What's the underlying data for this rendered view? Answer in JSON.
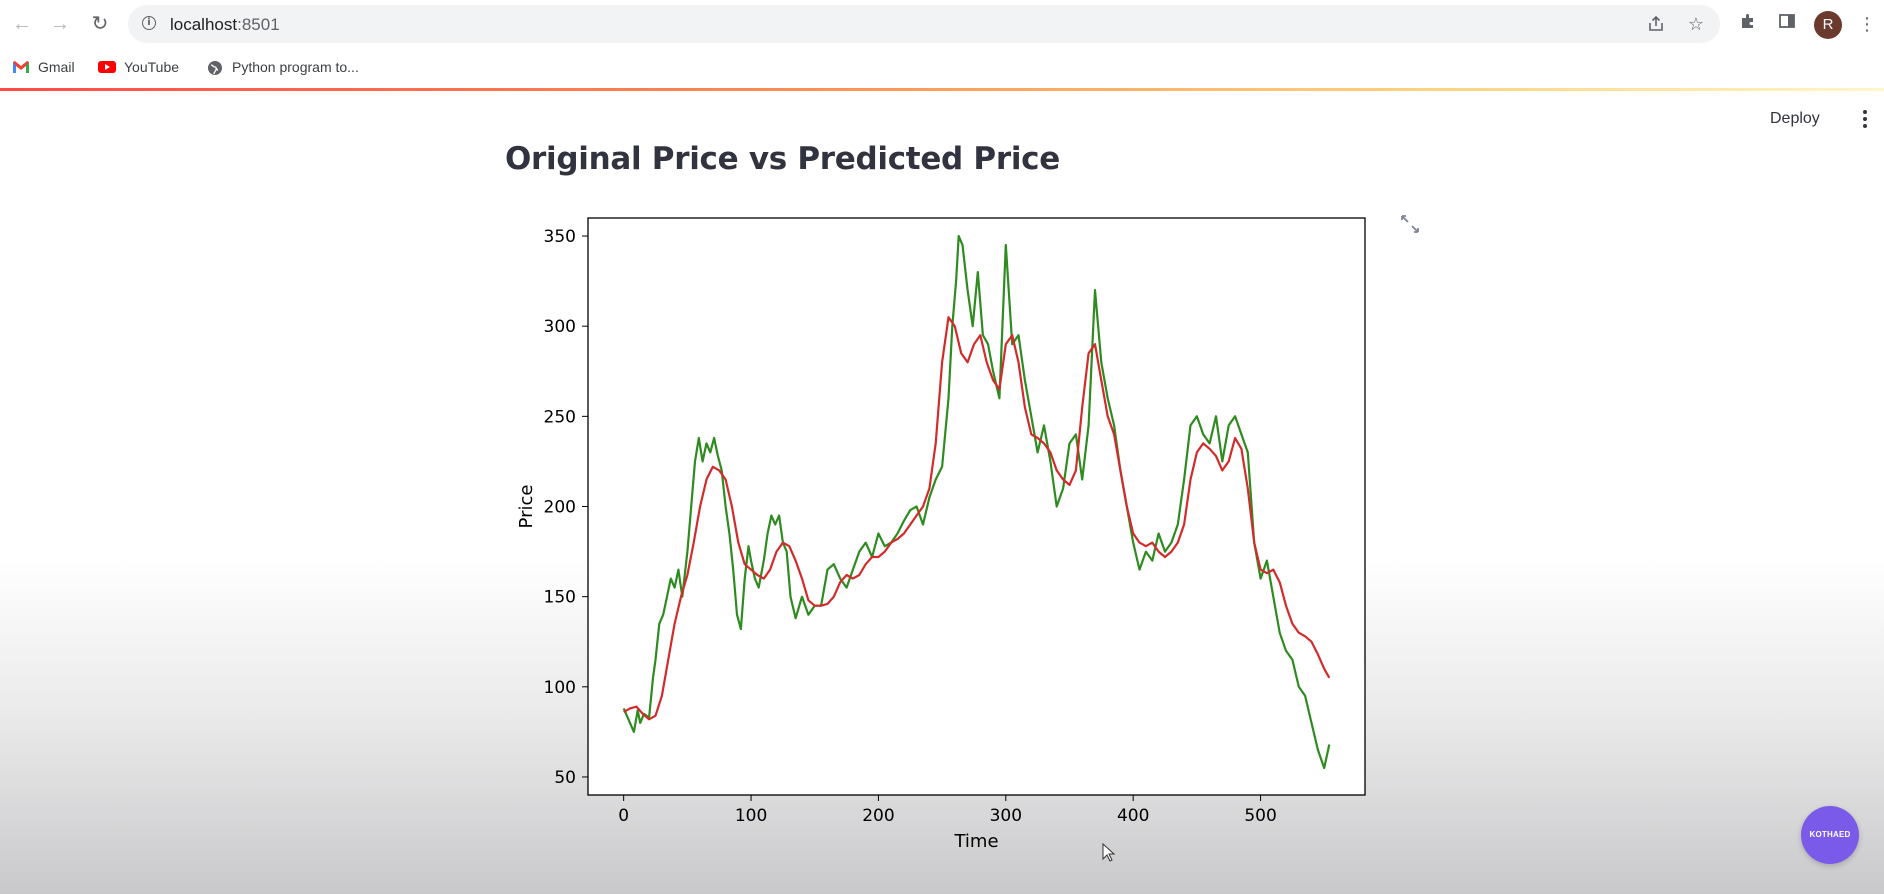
{
  "browser": {
    "url_host": "localhost",
    "url_port": ":8501",
    "profile_initial": "R",
    "bookmarks": [
      {
        "label": "Gmail",
        "icon": "gmail-icon"
      },
      {
        "label": "YouTube",
        "icon": "youtube-icon"
      },
      {
        "label": "Python program to...",
        "icon": "globe-icon"
      }
    ]
  },
  "app": {
    "deploy_label": "Deploy",
    "title": "Original Price vs Predicted Price",
    "badge_text": "KOTHAED"
  },
  "colors": {
    "original": "#2e8b1f",
    "predicted": "#d22b2b",
    "accent": "#ff4b4b",
    "badge": "#7a5ae8"
  },
  "chart_data": {
    "type": "line",
    "title": "",
    "xlabel": "Time",
    "ylabel": "Price",
    "xlim": [
      -28,
      582
    ],
    "ylim": [
      40,
      360
    ],
    "xticks": [
      0,
      100,
      200,
      300,
      400,
      500
    ],
    "yticks": [
      50,
      100,
      150,
      200,
      250,
      300,
      350
    ],
    "grid": false,
    "legend": "none",
    "series": [
      {
        "color": "#2e8b1f",
        "x": [
          0,
          5,
          8,
          11,
          13,
          16,
          20,
          23,
          25,
          28,
          31,
          34,
          37,
          40,
          43,
          46,
          50,
          53,
          56,
          59,
          62,
          65,
          68,
          71,
          74,
          77,
          80,
          83,
          86,
          89,
          92,
          95,
          98,
          100,
          103,
          106,
          110,
          113,
          116,
          119,
          122,
          125,
          128,
          131,
          135,
          140,
          145,
          150,
          155,
          160,
          165,
          170,
          175,
          180,
          185,
          190,
          195,
          200,
          205,
          210,
          215,
          220,
          225,
          230,
          235,
          240,
          245,
          250,
          255,
          258,
          261,
          263,
          266,
          270,
          274,
          278,
          282,
          286,
          290,
          295,
          300,
          305,
          310,
          315,
          320,
          325,
          330,
          335,
          340,
          345,
          350,
          355,
          360,
          365,
          370,
          375,
          380,
          385,
          390,
          395,
          400,
          405,
          410,
          415,
          420,
          425,
          430,
          435,
          440,
          445,
          450,
          455,
          460,
          465,
          470,
          475,
          480,
          485,
          490,
          495,
          500,
          505,
          510,
          515,
          520,
          525,
          530,
          535,
          540,
          545,
          550,
          554
        ],
        "y": [
          88,
          80,
          75,
          87,
          80,
          85,
          83,
          105,
          115,
          135,
          140,
          150,
          160,
          155,
          165,
          150,
          175,
          200,
          225,
          238,
          225,
          235,
          230,
          238,
          228,
          220,
          200,
          185,
          165,
          140,
          132,
          160,
          178,
          170,
          160,
          155,
          170,
          185,
          195,
          190,
          195,
          180,
          175,
          150,
          138,
          150,
          140,
          145,
          145,
          165,
          168,
          160,
          155,
          165,
          175,
          180,
          172,
          185,
          178,
          180,
          185,
          192,
          198,
          200,
          190,
          205,
          215,
          222,
          260,
          300,
          325,
          350,
          345,
          320,
          300,
          330,
          295,
          290,
          275,
          260,
          345,
          290,
          295,
          270,
          250,
          230,
          245,
          225,
          200,
          210,
          235,
          240,
          215,
          245,
          320,
          280,
          260,
          245,
          220,
          200,
          180,
          165,
          175,
          170,
          185,
          175,
          180,
          190,
          215,
          245,
          250,
          240,
          235,
          250,
          225,
          245,
          250,
          240,
          230,
          180,
          160,
          170,
          150,
          130,
          120,
          115,
          100,
          95,
          80,
          65,
          55,
          68
        ]
      },
      {
        "color": "#d22b2b",
        "x": [
          0,
          5,
          10,
          15,
          20,
          25,
          30,
          35,
          40,
          45,
          50,
          55,
          60,
          65,
          70,
          75,
          80,
          85,
          90,
          95,
          100,
          105,
          110,
          115,
          120,
          125,
          130,
          135,
          140,
          145,
          150,
          155,
          160,
          165,
          170,
          175,
          180,
          185,
          190,
          195,
          200,
          205,
          210,
          215,
          220,
          225,
          230,
          235,
          240,
          245,
          250,
          255,
          260,
          265,
          270,
          275,
          280,
          285,
          290,
          295,
          300,
          305,
          310,
          315,
          320,
          325,
          330,
          335,
          340,
          345,
          350,
          355,
          360,
          365,
          370,
          375,
          380,
          385,
          390,
          395,
          400,
          405,
          410,
          415,
          420,
          425,
          430,
          435,
          440,
          445,
          450,
          455,
          460,
          465,
          470,
          475,
          480,
          485,
          490,
          495,
          500,
          505,
          510,
          515,
          520,
          525,
          530,
          535,
          540,
          545,
          550,
          554
        ],
        "y": [
          86,
          88,
          89,
          85,
          82,
          84,
          95,
          115,
          135,
          150,
          162,
          180,
          200,
          215,
          222,
          220,
          215,
          200,
          180,
          168,
          165,
          162,
          160,
          165,
          175,
          180,
          178,
          170,
          160,
          148,
          145,
          145,
          146,
          150,
          158,
          162,
          160,
          162,
          168,
          172,
          172,
          175,
          180,
          182,
          185,
          190,
          195,
          200,
          210,
          235,
          280,
          305,
          300,
          285,
          280,
          290,
          295,
          280,
          270,
          265,
          290,
          295,
          280,
          255,
          240,
          238,
          235,
          230,
          220,
          215,
          212,
          220,
          255,
          285,
          290,
          270,
          250,
          240,
          220,
          200,
          185,
          180,
          178,
          180,
          175,
          172,
          175,
          180,
          190,
          215,
          230,
          235,
          232,
          228,
          220,
          225,
          238,
          232,
          210,
          180,
          165,
          163,
          165,
          158,
          145,
          135,
          130,
          128,
          125,
          118,
          110,
          105
        ]
      }
    ]
  }
}
